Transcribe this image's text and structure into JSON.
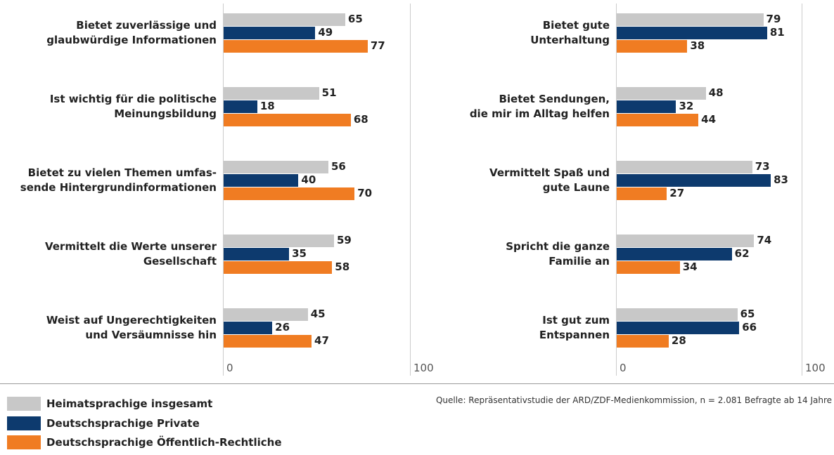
{
  "chart_data": [
    {
      "type": "bar",
      "orientation": "horizontal",
      "categories": [
        "Bietet zuverlässige und\nglaubwürdige Informationen",
        "Ist wichtig für die politische\nMeinungsbildung",
        "Bietet zu vielen Themen umfas-\nsende Hintergrundinformationen",
        "Vermittelt die Werte unserer\nGesellschaft",
        "Weist auf Ungerechtigkeiten\nund Versäumnisse hin"
      ],
      "series": [
        {
          "name": "Heimatsprachige insgesamt",
          "color": "#c8c8c8",
          "values": [
            65,
            51,
            56,
            59,
            45
          ]
        },
        {
          "name": "Deutschsprachige Private",
          "color": "#0d3a6e",
          "values": [
            49,
            18,
            40,
            35,
            26
          ]
        },
        {
          "name": "Deutschsprachige Öffentlich-Rechtliche",
          "color": "#f07c22",
          "values": [
            77,
            68,
            70,
            58,
            47
          ]
        }
      ],
      "xlim": [
        0,
        100
      ],
      "xticks": [
        0,
        100
      ]
    },
    {
      "type": "bar",
      "orientation": "horizontal",
      "categories": [
        "Bietet gute\nUnterhaltung",
        "Bietet Sendungen,\ndie mir im Alltag helfen",
        "Vermittelt Spaß und\ngute Laune",
        "Spricht die ganze\nFamilie an",
        "Ist gut zum\nEntspannen"
      ],
      "series": [
        {
          "color": "#c8c8c8",
          "values": [
            79,
            48,
            73,
            74,
            65
          ]
        },
        {
          "color": "#0d3a6e",
          "values": [
            81,
            32,
            83,
            62,
            66
          ]
        },
        {
          "color": "#f07c22",
          "values": [
            38,
            44,
            27,
            34,
            28
          ]
        }
      ],
      "xlim": [
        0,
        100
      ],
      "xticks": [
        0,
        100
      ]
    }
  ],
  "source": "Quelle: Repräsentativstudie der ARD/ZDF-Medienkommission, n = 2.081 Befragte ab 14 Jahre"
}
